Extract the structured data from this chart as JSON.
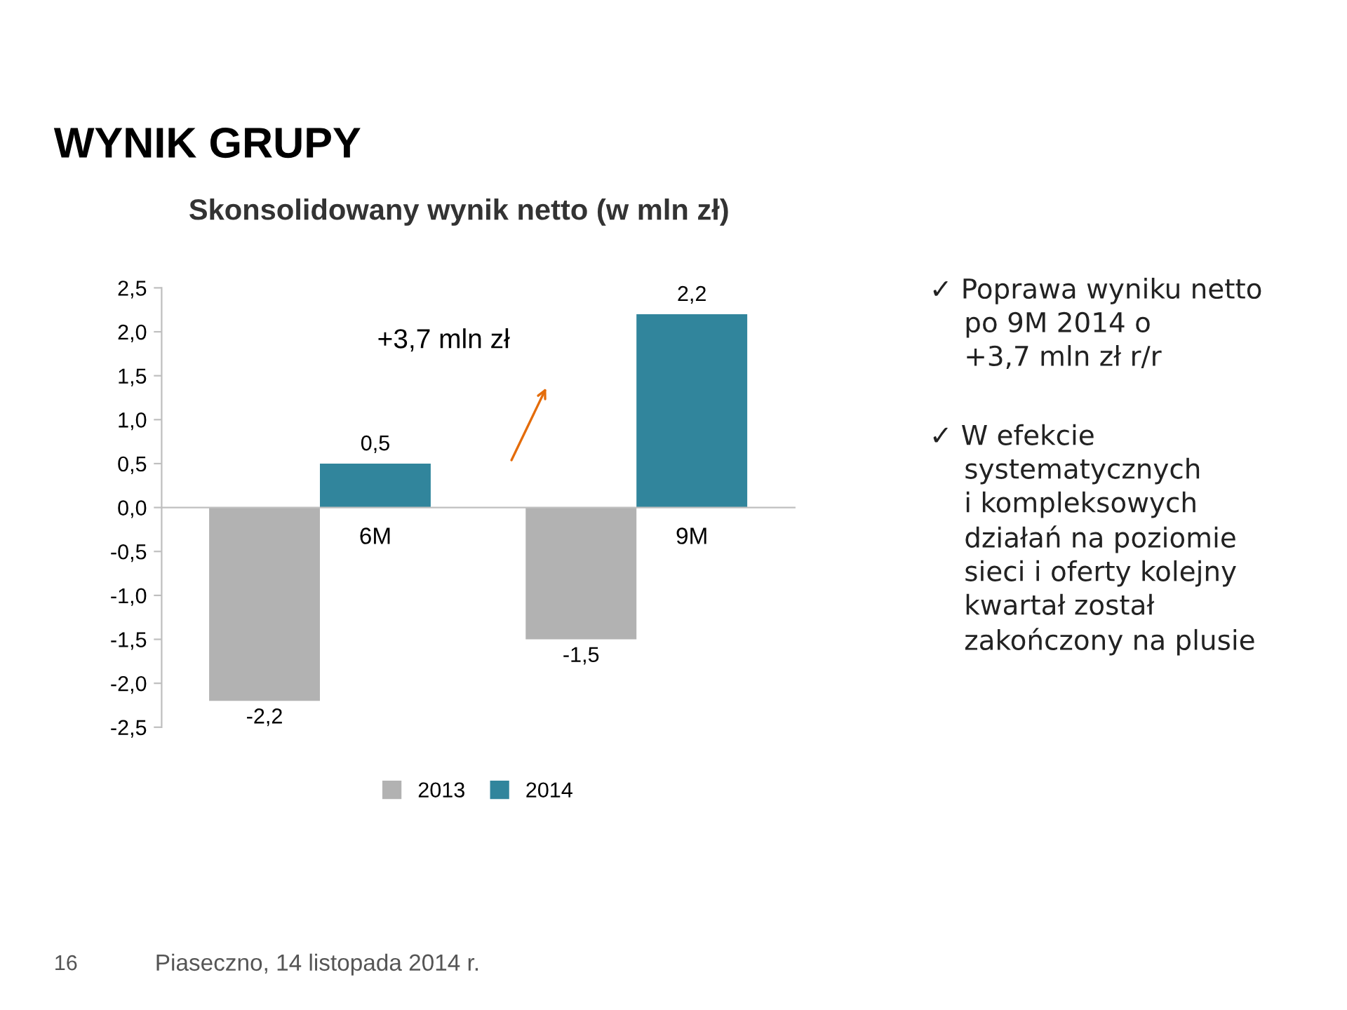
{
  "chart_data": {
    "type": "bar",
    "title": "WYNIK GRUPY",
    "subtitle": "Skonsolidowany wynik netto (w mln zł)",
    "categories": [
      "6M",
      "9M"
    ],
    "series": [
      {
        "name": "2013",
        "color": "#b2b2b2",
        "values": [
          -2.2,
          -1.5
        ],
        "value_labels": [
          "-2,2",
          "-1,5"
        ]
      },
      {
        "name": "2014",
        "color": "#31859c",
        "values": [
          0.5,
          2.2
        ],
        "value_labels": [
          "0,5",
          "2,2"
        ]
      }
    ],
    "ylim": [
      -2.5,
      2.5
    ],
    "yticks": [
      {
        "value": -2.5,
        "label": "-2,5"
      },
      {
        "value": -2.0,
        "label": "-2,0"
      },
      {
        "value": -1.5,
        "label": "-1,5"
      },
      {
        "value": -1.0,
        "label": "-1,0"
      },
      {
        "value": -0.5,
        "label": "-0,5"
      },
      {
        "value": 0,
        "label": "0,0"
      },
      {
        "value": 0.5,
        "label": "0,5"
      },
      {
        "value": 1.0,
        "label": "1,0"
      },
      {
        "value": 1.5,
        "label": "1,5"
      },
      {
        "value": 2.0,
        "label": "2,0"
      },
      {
        "value": 2.5,
        "label": "2,5"
      }
    ],
    "legend": "bottom",
    "annotations": [
      "+3,7 mln zł",
      "✓ Poprawa wyniku netto\n    po 9M 2014 o\n    +3,7 mln zł r/r",
      "✓ W efekcie\n    systematycznych\n    i kompleksowych\n    działań na poziomie\n    sieci i oferty kolejny\n    kwartał został\n    zakończony na plusie",
      "16",
      "Piaseczno, 14 listopada 2014 r."
    ]
  }
}
